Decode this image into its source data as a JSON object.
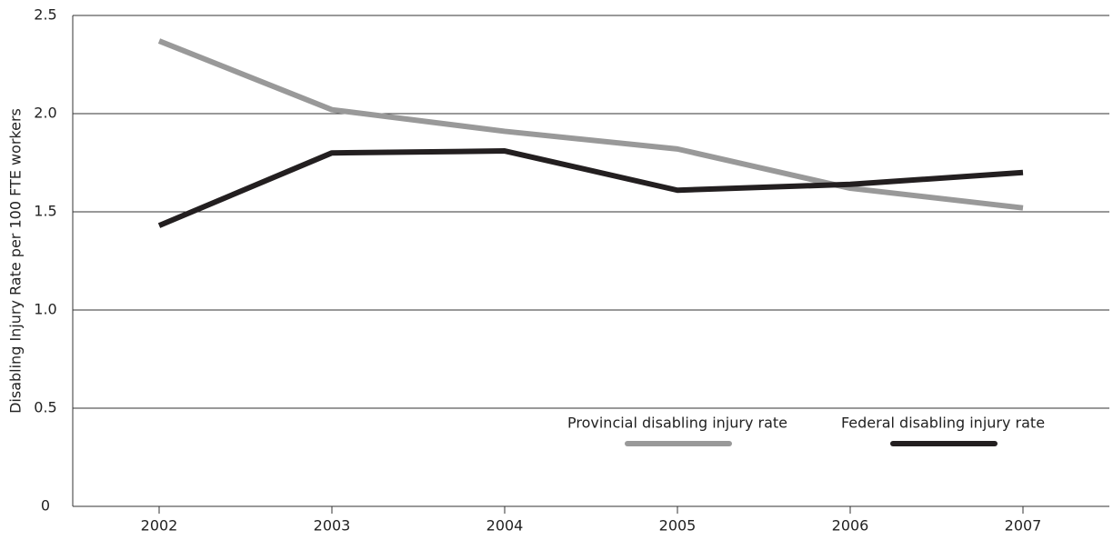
{
  "chart_data": {
    "type": "line",
    "y_label": "Disabling Injury Rate per 100 FTE workers",
    "categories": [
      "2002",
      "2003",
      "2004",
      "2005",
      "2006",
      "2007"
    ],
    "series": [
      {
        "name": "Provincial disabling injury rate",
        "color": "#999999",
        "values": [
          2.37,
          2.02,
          1.91,
          1.82,
          1.62,
          1.52
        ]
      },
      {
        "name": "Federal disabling injury rate",
        "color": "#231f20",
        "values": [
          1.43,
          1.8,
          1.81,
          1.61,
          1.64,
          1.7
        ]
      }
    ],
    "ylim": [
      0,
      2.5
    ],
    "yticks": [
      0,
      0.5,
      {
        "value": 1,
        "label": "1.0"
      },
      1.5,
      {
        "value": 2,
        "label": "2.0"
      },
      2.5
    ],
    "grid": true,
    "legend": "lower right"
  }
}
